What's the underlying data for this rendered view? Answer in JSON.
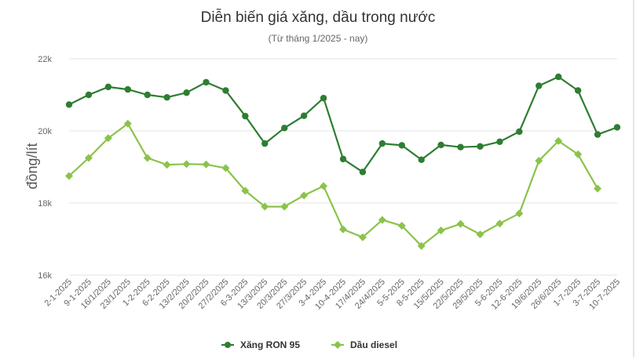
{
  "chart_data": {
    "type": "line",
    "title": "Diễn biến giá xăng, dầu trong nước",
    "subtitle": "(Từ tháng 1/2025 - nay)",
    "xlabel": "",
    "ylabel": "đồng/lít",
    "ylim": [
      16000,
      22000
    ],
    "yticks": [
      16000,
      18000,
      20000,
      22000
    ],
    "ytick_labels": [
      "16k",
      "18k",
      "20k",
      "22k"
    ],
    "grid": "horizontal",
    "legend_position": "bottom-center",
    "categories": [
      "2-1-2025",
      "9-1-2025",
      "16/1/2025",
      "23/1/2025",
      "1-2-2025",
      "6-2-2025",
      "13/2/2025",
      "20/2/2025",
      "27/2/2025",
      "6-3-2025",
      "13/3/2025",
      "20/3/2025",
      "27/3/2025",
      "3-4-2025",
      "10-4-2025",
      "17/4/2025",
      "24/4/2025",
      "5-5-2025",
      "8-5-2025",
      "15/5/2025",
      "22/5/2025",
      "29/5/2025",
      "5-6-2025",
      "12-6-2025",
      "19/6/2025",
      "26/6/2025",
      "1-7-2025",
      "3-7-2025",
      "10-7-2025"
    ],
    "series": [
      {
        "name": "Xăng RON 95",
        "color": "#2e7d32",
        "values": [
          20730,
          21000,
          21220,
          21150,
          21000,
          20930,
          21060,
          21350,
          21120,
          20410,
          19650,
          20080,
          20420,
          20910,
          19220,
          18860,
          19650,
          19600,
          19200,
          19610,
          19550,
          19570,
          19700,
          19980,
          21250,
          21500,
          21120,
          19900,
          20100
        ]
      },
      {
        "name": "Dầu diesel",
        "color": "#8bc34a",
        "values": [
          18750,
          19250,
          19800,
          20200,
          19250,
          19060,
          19080,
          19070,
          18970,
          18340,
          17900,
          17900,
          18210,
          18470,
          17270,
          17050,
          17530,
          17370,
          16810,
          17240,
          17420,
          17130,
          17430,
          17710,
          19170,
          19720,
          19350,
          18400,
          null
        ]
      }
    ]
  }
}
